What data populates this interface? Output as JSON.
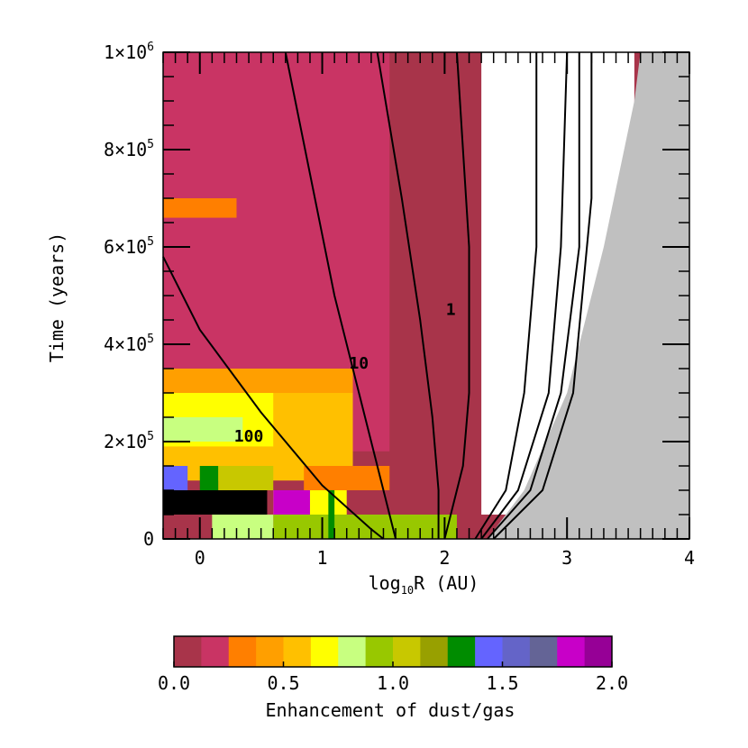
{
  "chart_data": {
    "type": "heatmap",
    "title": "",
    "xlabel": {
      "prefix": "log",
      "sub": "10",
      "suffix": "R (AU)"
    },
    "ylabel": "Time (years)",
    "xlim": [
      -0.3,
      4
    ],
    "ylim": [
      0,
      1000000
    ],
    "grid": false,
    "x_ticks": [
      {
        "value": 0,
        "label": "0"
      },
      {
        "value": 1,
        "label": "1"
      },
      {
        "value": 2,
        "label": "2"
      },
      {
        "value": 3,
        "label": "3"
      },
      {
        "value": 4,
        "label": "4"
      }
    ],
    "y_ticks": [
      {
        "value": 0,
        "label": "0",
        "exp": ""
      },
      {
        "value": 200000,
        "label": "2×10",
        "exp": "5"
      },
      {
        "value": 400000,
        "label": "4×10",
        "exp": "5"
      },
      {
        "value": 600000,
        "label": "6×10",
        "exp": "5"
      },
      {
        "value": 800000,
        "label": "8×10",
        "exp": "5"
      },
      {
        "value": 1000000,
        "label": "1×10",
        "exp": "6"
      }
    ],
    "palette": [
      "#a8344a",
      "#c93464",
      "#ff7f00",
      "#ff9f00",
      "#ffc000",
      "#ffff00",
      "#c8ff80",
      "#98c800",
      "#c8c800",
      "#98a000",
      "#008c00",
      "#6464ff",
      "#6464c8",
      "#646496",
      "#c800c8",
      "#960096"
    ],
    "colorbar": {
      "label": "Enhancement of dust/gas",
      "min": 0.0,
      "max": 2.0,
      "tick_labels": [
        "0.0",
        "0.5",
        "1.0",
        "1.5",
        "2.0"
      ]
    },
    "special_colors": {
      "beyond_disk": "#c0c0c0",
      "saturated": "#000000",
      "empty": "#ffffff"
    },
    "regions": [
      {
        "bin": 0,
        "x0": -0.3,
        "x1": 4.0,
        "t0": 0,
        "t1": 1000000
      },
      {
        "bin": 1,
        "x0": -0.3,
        "x1": 1.55,
        "t0": 180000,
        "t1": 1000000
      },
      {
        "bin": 2,
        "x0": -0.3,
        "x1": 0.3,
        "t0": 660000,
        "t1": 700000
      },
      {
        "bin": 4,
        "x0": -0.3,
        "x1": 1.25,
        "t0": 120000,
        "t1": 350000
      },
      {
        "bin": 3,
        "x0": -0.3,
        "x1": 1.25,
        "t0": 300000,
        "t1": 350000
      },
      {
        "bin": 5,
        "x0": -0.3,
        "x1": 0.6,
        "t0": 190000,
        "t1": 300000
      },
      {
        "bin": 6,
        "x0": -0.3,
        "x1": 0.35,
        "t0": 200000,
        "t1": 250000
      },
      {
        "bin": 2,
        "x0": 0.85,
        "x1": 1.55,
        "t0": 100000,
        "t1": 150000
      },
      {
        "bin": 11,
        "x0": -0.3,
        "x1": -0.1,
        "t0": 100000,
        "t1": 150000
      },
      {
        "bin": 8,
        "x0": 0.15,
        "x1": 0.6,
        "t0": 100000,
        "t1": 150000
      },
      {
        "bin": 10,
        "x0": 0.0,
        "x1": 0.15,
        "t0": 100000,
        "t1": 150000
      },
      {
        "bin": 7,
        "x0": 0.6,
        "x1": 2.1,
        "t0": 0,
        "t1": 50000
      },
      {
        "bin": 6,
        "x0": 0.1,
        "x1": 0.6,
        "t0": 0,
        "t1": 50000
      },
      {
        "bin": 5,
        "x0": 0.6,
        "x1": 1.2,
        "t0": 50000,
        "t1": 100000
      },
      {
        "bin": 14,
        "x0": 0.6,
        "x1": 0.9,
        "t0": 50000,
        "t1": 100000
      },
      {
        "bin": 10,
        "x0": 1.05,
        "x1": 1.1,
        "t0": 0,
        "t1": 100000
      }
    ],
    "saturated_regions": [
      {
        "x0": -0.3,
        "x1": 0.55,
        "t0": 50000,
        "t1": 100000
      }
    ],
    "empty_region": {
      "x0": 2.3,
      "x1": 3.55,
      "t0": 50000,
      "t1": 1000000
    },
    "disk_edge": [
      {
        "x": 2.35,
        "t": 0
      },
      {
        "x": 2.65,
        "t": 100000
      },
      {
        "x": 3.0,
        "t": 300000
      },
      {
        "x": 3.3,
        "t": 600000
      },
      {
        "x": 3.55,
        "t": 900000
      },
      {
        "x": 3.6,
        "t": 1000000
      }
    ],
    "contours": [
      {
        "label": "100",
        "label_x": 0.4,
        "label_t": 200000,
        "points": [
          {
            "x": -0.3,
            "t": 580000
          },
          {
            "x": 0.0,
            "t": 430000
          },
          {
            "x": 0.5,
            "t": 260000
          },
          {
            "x": 1.0,
            "t": 110000
          },
          {
            "x": 1.4,
            "t": 20000
          },
          {
            "x": 1.5,
            "t": 0
          }
        ]
      },
      {
        "label": "10",
        "label_x": 1.3,
        "label_t": 350000,
        "points": [
          {
            "x": 0.7,
            "t": 1000000
          },
          {
            "x": 0.9,
            "t": 750000
          },
          {
            "x": 1.1,
            "t": 500000
          },
          {
            "x": 1.3,
            "t": 300000
          },
          {
            "x": 1.5,
            "t": 100000
          },
          {
            "x": 1.6,
            "t": 0
          }
        ]
      },
      {
        "label": "1",
        "label_x": 2.05,
        "label_t": 460000,
        "points": [
          {
            "x": 1.45,
            "t": 1000000
          },
          {
            "x": 1.65,
            "t": 700000
          },
          {
            "x": 1.8,
            "t": 450000
          },
          {
            "x": 1.9,
            "t": 250000
          },
          {
            "x": 1.95,
            "t": 100000
          },
          {
            "x": 1.95,
            "t": 0
          }
        ]
      },
      {
        "label": "",
        "label_x": null,
        "label_t": null,
        "points": [
          {
            "x": 2.1,
            "t": 1000000
          },
          {
            "x": 2.2,
            "t": 600000
          },
          {
            "x": 2.2,
            "t": 300000
          },
          {
            "x": 2.15,
            "t": 150000
          },
          {
            "x": 2.0,
            "t": 0
          }
        ]
      },
      {
        "label": "",
        "label_x": null,
        "label_t": null,
        "points": [
          {
            "x": 2.25,
            "t": 0
          },
          {
            "x": 2.5,
            "t": 100000
          },
          {
            "x": 2.65,
            "t": 300000
          },
          {
            "x": 2.75,
            "t": 600000
          },
          {
            "x": 2.75,
            "t": 1000000
          }
        ]
      },
      {
        "label": "",
        "label_x": null,
        "label_t": null,
        "points": [
          {
            "x": 2.3,
            "t": 0
          },
          {
            "x": 2.6,
            "t": 100000
          },
          {
            "x": 2.85,
            "t": 300000
          },
          {
            "x": 2.95,
            "t": 600000
          },
          {
            "x": 3.0,
            "t": 1000000
          }
        ]
      },
      {
        "label": "",
        "label_x": null,
        "label_t": null,
        "points": [
          {
            "x": 2.35,
            "t": 0
          },
          {
            "x": 2.7,
            "t": 100000
          },
          {
            "x": 2.95,
            "t": 300000
          },
          {
            "x": 3.1,
            "t": 600000
          },
          {
            "x": 3.1,
            "t": 1000000
          }
        ]
      },
      {
        "label": "",
        "label_x": null,
        "label_t": null,
        "points": [
          {
            "x": 2.4,
            "t": 0
          },
          {
            "x": 2.8,
            "t": 100000
          },
          {
            "x": 3.05,
            "t": 300000
          },
          {
            "x": 3.2,
            "t": 700000
          },
          {
            "x": 3.2,
            "t": 1000000
          }
        ]
      }
    ]
  }
}
